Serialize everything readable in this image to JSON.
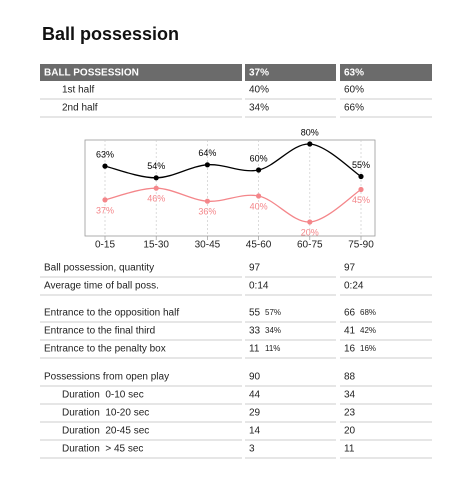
{
  "title": "Ball possession",
  "header": {
    "label": "BALL POSSESSION",
    "home": "37%",
    "away": "63%"
  },
  "halves": [
    {
      "label": "1st half",
      "home": "40%",
      "away": "60%"
    },
    {
      "label": "2nd half",
      "home": "34%",
      "away": "66%"
    }
  ],
  "chart_data": {
    "type": "line",
    "categories": [
      "0-15",
      "15-30",
      "30-45",
      "45-60",
      "60-75",
      "75-90"
    ],
    "ylim": [
      0,
      100
    ],
    "series": [
      {
        "color": "#000000",
        "values": [
          63,
          54,
          64,
          60,
          80,
          55
        ],
        "value_labels": [
          "63%",
          "54%",
          "64%",
          "60%",
          "80%",
          "55%"
        ]
      },
      {
        "color": "#f4868a",
        "values": [
          37,
          46,
          36,
          40,
          20,
          45
        ],
        "value_labels": [
          "37%",
          "46%",
          "36%",
          "40%",
          "20%",
          "45%"
        ]
      }
    ]
  },
  "sections": [
    {
      "rows": [
        {
          "label": "Ball possession, quantity",
          "home": "97",
          "away": "97"
        },
        {
          "label": "Average time of ball poss.",
          "home": "0:14",
          "away": "0:24"
        }
      ]
    },
    {
      "rows": [
        {
          "label": "Entrance to the opposition half",
          "home": "55",
          "home_pct": "57%",
          "away": "66",
          "away_pct": "68%"
        },
        {
          "label": "Entrance to the final third",
          "home": "33",
          "home_pct": "34%",
          "away": "41",
          "away_pct": "42%"
        },
        {
          "label": "Entrance to the penalty box",
          "home": "11",
          "home_pct": "11%",
          "away": "16",
          "away_pct": "16%"
        }
      ]
    },
    {
      "rows": [
        {
          "label": "Possessions from open play",
          "home": "90",
          "away": "88"
        },
        {
          "label": "Duration  0-10 sec",
          "home": "44",
          "away": "34",
          "indent": true
        },
        {
          "label": "Duration  10-20 sec",
          "home": "29",
          "away": "23",
          "indent": true
        },
        {
          "label": "Duration  20-45 sec",
          "home": "14",
          "away": "20",
          "indent": true
        },
        {
          "label": "Duration  > 45 sec",
          "home": "3",
          "away": "11",
          "indent": true
        }
      ]
    }
  ]
}
